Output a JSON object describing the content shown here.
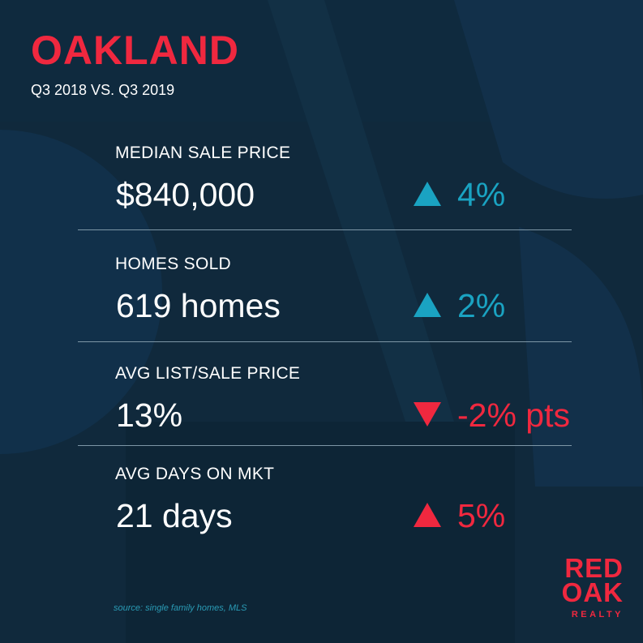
{
  "header": {
    "title": "OAKLAND",
    "subtitle": "Q3 2018 VS. Q3 2019"
  },
  "metrics": [
    {
      "label": "MEDIAN SALE PRICE",
      "value": "$840,000",
      "direction": "up",
      "change": "4%",
      "color": "#1aa3c2"
    },
    {
      "label": "HOMES SOLD",
      "value": "619 homes",
      "direction": "up",
      "change": "2%",
      "color": "#1aa3c2"
    },
    {
      "label": "AVG LIST/SALE PRICE",
      "value": "13%",
      "direction": "down",
      "change": "-2% pts",
      "color": "#f0283f"
    },
    {
      "label": "AVG DAYS ON MKT",
      "value": "21 days",
      "direction": "up",
      "change": "5%",
      "color": "#f0283f"
    }
  ],
  "source": "source: single family homes, MLS",
  "logo": {
    "line1": "RED",
    "line2": "OAK",
    "sub": "REALTY",
    "color": "#f0283f"
  },
  "colors": {
    "background": "#0f2a3e",
    "accent_red": "#f0283f",
    "accent_teal": "#1aa3c2"
  },
  "icons": {
    "up": "triangle-up-icon",
    "down": "triangle-down-icon"
  }
}
